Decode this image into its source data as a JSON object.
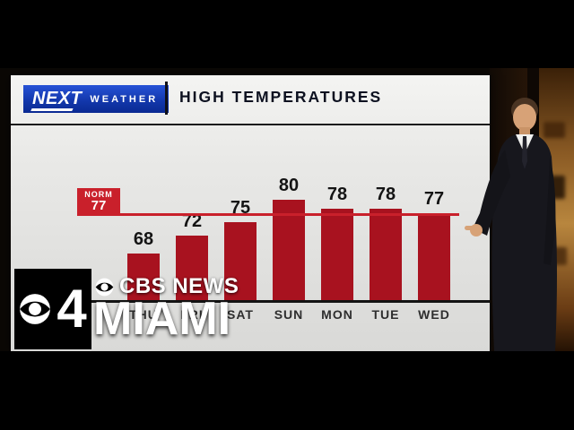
{
  "branding": {
    "station_number": "4",
    "network": "CBS NEWS",
    "market": "MIAMI"
  },
  "weather_header": {
    "logo_next": "NEXT",
    "logo_weather": "WEATHER",
    "title": "HIGH TEMPERATURES"
  },
  "chart_data": {
    "type": "bar",
    "title": "HIGH TEMPERATURES",
    "categories": [
      "THU",
      "FRI",
      "SAT",
      "SUN",
      "MON",
      "TUE",
      "WED"
    ],
    "values": [
      68,
      72,
      75,
      80,
      78,
      78,
      77
    ],
    "norm": {
      "label": "NORM",
      "value": 77
    },
    "xlabel": "",
    "ylabel": "",
    "ylim": [
      57,
      85
    ],
    "grid": false,
    "legend_position": "none",
    "bar_color": "#a8121f",
    "norm_line_color": "#c9202b"
  },
  "colors": {
    "bar_red": "#a8121f",
    "norm_red": "#c9202b",
    "logo_blue": "#1338ad",
    "letterbox_black": "#000000",
    "panel_gray": "#e9e9e7"
  }
}
